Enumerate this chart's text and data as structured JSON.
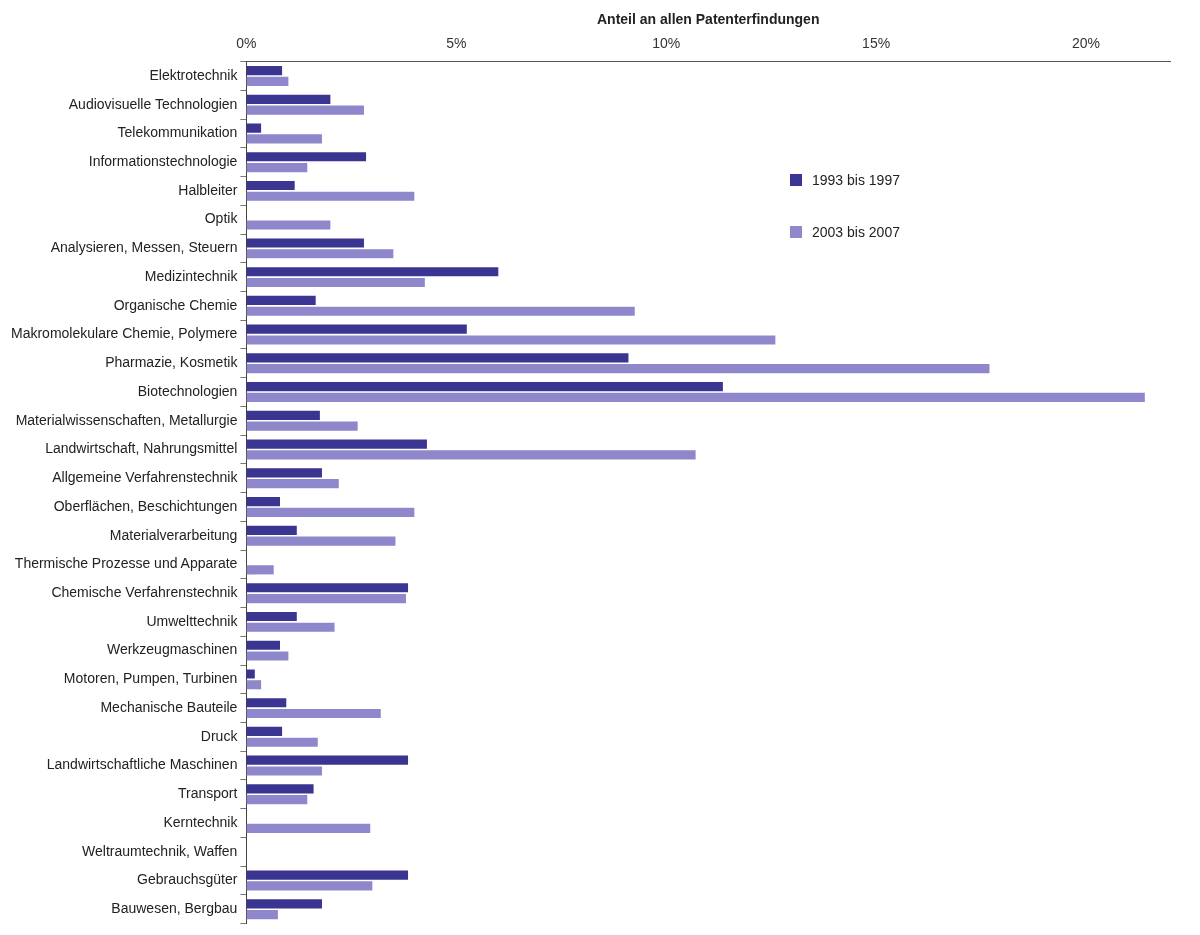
{
  "chart_data": {
    "type": "bar",
    "orientation": "horizontal",
    "xlabel": "Anteil an allen Patenterfindungen",
    "categories": [
      "Elektrotechnik",
      "Audiovisuelle Technologien",
      "Telekommunikation",
      "Informationstechnologie",
      "Halbleiter",
      "Optik",
      "Analysieren, Messen, Steuern",
      "Medizintechnik",
      "Organische Chemie",
      "Makromolekulare Chemie, Polymere",
      "Pharmazie, Kosmetik",
      "Biotechnologien",
      "Materialwissenschaften, Metallurgie",
      "Landwirtschaft, Nahrungsmittel",
      "Allgemeine Verfahrenstechnik",
      "Oberflächen, Beschichtungen",
      "Materialverarbeitung",
      "Thermische Prozesse und Apparate",
      "Chemische Verfahrenstechnik",
      "Umwelttechnik",
      "Werkzeugmaschinen",
      "Motoren, Pumpen, Turbinen",
      "Mechanische Bauteile",
      "Druck",
      "Landwirtschaftliche Maschinen",
      "Transport",
      "Kerntechnik",
      "Weltraumtechnik, Waffen",
      "Gebrauchsgüter",
      "Bauwesen, Bergbau"
    ],
    "series": [
      {
        "name": "1993 bis 1997",
        "color": "#3a3590",
        "values": [
          0.85,
          2.0,
          0.35,
          2.85,
          1.15,
          0,
          2.8,
          6.0,
          1.65,
          5.25,
          9.1,
          11.35,
          1.75,
          4.3,
          1.8,
          0.8,
          1.2,
          0,
          3.85,
          1.2,
          0.8,
          0.2,
          0.95,
          0.85,
          3.85,
          1.6,
          0,
          0,
          3.85,
          1.8
        ]
      },
      {
        "name": "2003 bis 2007",
        "color": "#8e87cc",
        "values": [
          1.0,
          2.8,
          1.8,
          1.45,
          4.0,
          2.0,
          3.5,
          4.25,
          9.25,
          12.6,
          17.7,
          21.4,
          2.65,
          10.7,
          2.2,
          4.0,
          3.55,
          0.65,
          3.8,
          2.1,
          1.0,
          0.35,
          3.2,
          1.7,
          1.8,
          1.45,
          2.95,
          0,
          3.0,
          0.75
        ]
      }
    ],
    "xlim": [
      0,
      22
    ],
    "xticks": [
      {
        "value": 0,
        "label": "0%"
      },
      {
        "value": 5,
        "label": "5%"
      },
      {
        "value": 10,
        "label": "10%"
      },
      {
        "value": 15,
        "label": "15%"
      },
      {
        "value": 20,
        "label": "20%"
      }
    ],
    "legend": "top right",
    "grid": false
  }
}
